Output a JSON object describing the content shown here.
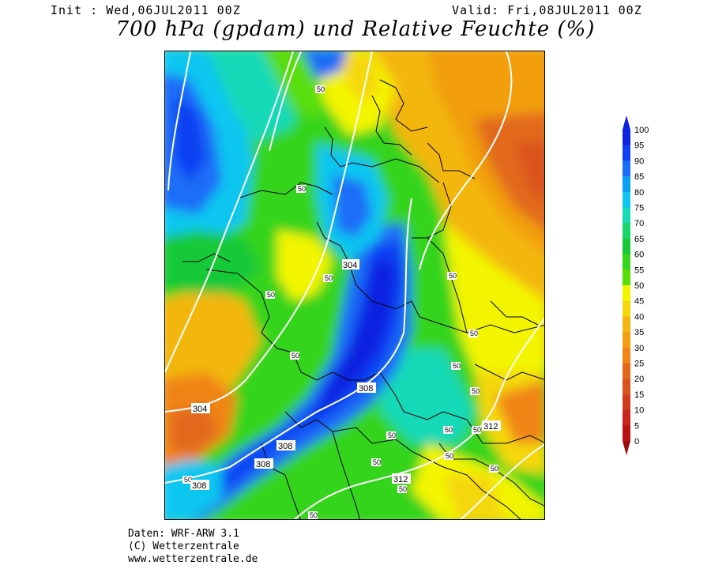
{
  "header": {
    "init_text": "Init : Wed,06JUL2011 00Z",
    "valid_text": "Valid: Fri,08JUL2011 00Z",
    "title": "700 hPa (gpdam) und Relative Feuchte (%)"
  },
  "map": {
    "contour_labels": {
      "height": [
        "304",
        "304",
        "308",
        "308",
        "308",
        "308",
        "312",
        "312"
      ],
      "humidity": [
        "50",
        "50",
        "50",
        "50",
        "50",
        "50",
        "50",
        "50",
        "50",
        "50",
        "50",
        "50",
        "50",
        "50",
        "50",
        "50",
        "50",
        "50"
      ]
    }
  },
  "colorbar": {
    "labels": [
      "100",
      "95",
      "90",
      "85",
      "80",
      "75",
      "70",
      "65",
      "60",
      "55",
      "50",
      "45",
      "40",
      "35",
      "30",
      "25",
      "20",
      "15",
      "10",
      "5",
      "0"
    ],
    "colors": [
      "#0b24e0",
      "#0f40f2",
      "#1a6df7",
      "#0a9ff2",
      "#10c6f0",
      "#17d9b7",
      "#19d66b",
      "#17c938",
      "#36d41a",
      "#59dd08",
      "#f3f501",
      "#f5d70a",
      "#f3b610",
      "#f29e0e",
      "#f08518",
      "#e2691c",
      "#da521d",
      "#d13c1e",
      "#c8261a",
      "#b91414"
    ]
  },
  "credits": {
    "line1": "Daten: WRF-ARW 3.1",
    "line2": "(C) Wetterzentrale",
    "line3": "www.wetterzentrale.de"
  }
}
